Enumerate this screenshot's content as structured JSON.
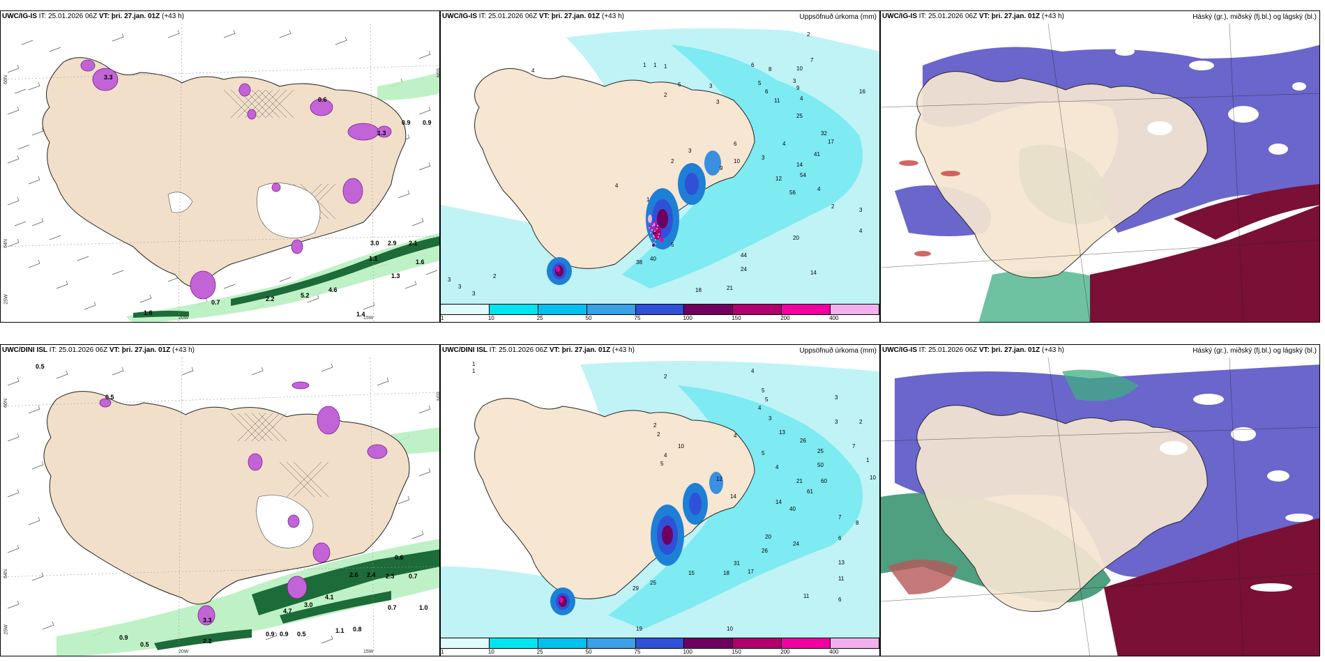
{
  "panels": [
    {
      "id": "ig-wind",
      "title": {
        "model": "UWC/IG-IS",
        "it_label": "IT:",
        "it_value": "25.01.2026 06Z",
        "vt_label": "VT:",
        "vt_value": "þri. 27.jan. 01Z",
        "lead": "(+43 h)"
      },
      "axis_labels": [
        "66N",
        "64N",
        "25W",
        "20W",
        "15W",
        "65N"
      ],
      "values": [
        "0.9",
        "0.9",
        "3.0",
        "2.9",
        "2.1",
        "1.1",
        "1.6",
        "4.6",
        "5.2",
        "2.2",
        "0.7",
        "1.3",
        "1.6",
        "3.3",
        "0.6",
        "1.4",
        "1.3"
      ]
    },
    {
      "id": "ig-precip",
      "title": {
        "model": "UWC/IG-IS",
        "it_label": "IT:",
        "it_value": "25.01.2026 06Z",
        "vt_label": "VT:",
        "vt_value": "þri. 27.jan. 01Z",
        "lead": "(+43 h)"
      },
      "legend_text": "Uppsöfnuð úrkoma (mm)",
      "colorbar": {
        "ticks": [
          "1",
          "10",
          "25",
          "50",
          "75",
          "100",
          "150",
          "200",
          "400"
        ],
        "colors": [
          "#e0fbfb",
          "#00e6f0",
          "#00c0f0",
          "#3aa0e8",
          "#3050d8",
          "#700060",
          "#b0006e",
          "#f000a0",
          "#f2b0ee"
        ]
      },
      "values": [
        "4",
        "2",
        "1",
        "1",
        "1",
        "5",
        "3",
        "2",
        "3",
        "6",
        "8",
        "3",
        "5",
        "16",
        "7",
        "10",
        "9",
        "6",
        "4",
        "11",
        "25",
        "32",
        "17",
        "41",
        "14",
        "9",
        "6",
        "3",
        "10",
        "4",
        "12",
        "54",
        "56",
        "2",
        "3",
        "3",
        "2",
        "1",
        "4",
        "38",
        "40",
        "5",
        "44",
        "24",
        "18",
        "21",
        "20",
        "14",
        "4",
        "4",
        "2",
        "3",
        "3",
        "3"
      ]
    },
    {
      "id": "ig-cloud",
      "title": {
        "model": "UWC/IG-IS",
        "it_label": "IT:",
        "it_value": "25.01.2026 06Z",
        "vt_label": "VT:",
        "vt_value": "þri. 27.jan. 01Z",
        "lead": "(+43 h)"
      },
      "legend_text": "Háský (gr.), miðský (fj.bl.) og lágský (bl.)"
    },
    {
      "id": "dini-wind",
      "title": {
        "model": "UWC/DINI ISL",
        "it_label": "IT:",
        "it_value": "25.01.2026 06Z",
        "vt_label": "VT:",
        "vt_value": "þri. 27.jan. 01Z",
        "lead": "(+43 h)"
      },
      "axis_labels": [
        "66N",
        "64N",
        "25W",
        "20W",
        "15W",
        "65N"
      ],
      "values": [
        "0.5",
        "0.5",
        "3.3",
        "0.6",
        "2.6",
        "2.4",
        "2.3",
        "0.7",
        "0.7",
        "1.0",
        "4.1",
        "4.7",
        "3.0",
        "0.9",
        "0.9",
        "0.5",
        "1.1",
        "0.8",
        "2.2",
        "0.9",
        "0.5"
      ]
    },
    {
      "id": "dini-precip",
      "title": {
        "model": "UWC/DINI ISL",
        "it_label": "IT:",
        "it_value": "25.01.2026 06Z",
        "vt_label": "VT:",
        "vt_value": "þri. 27.jan. 01Z",
        "lead": "(+43 h)"
      },
      "legend_text": "Uppsöfnuð úrkoma (mm)",
      "colorbar": {
        "ticks": [
          "1",
          "10",
          "25",
          "50",
          "75",
          "100",
          "150",
          "200",
          "400"
        ],
        "colors": [
          "#e0fbfb",
          "#00e6f0",
          "#00c0f0",
          "#3aa0e8",
          "#3050d8",
          "#700060",
          "#b0006e",
          "#f000a0",
          "#f2b0ee"
        ]
      },
      "values": [
        "1",
        "1",
        "2",
        "4",
        "5",
        "5",
        "4",
        "3",
        "13",
        "26",
        "25",
        "50",
        "60",
        "61",
        "14",
        "21",
        "40",
        "20",
        "24",
        "26",
        "31",
        "17",
        "18",
        "15",
        "29",
        "25",
        "19",
        "10",
        "13",
        "11",
        "11",
        "6",
        "8",
        "7",
        "6",
        "3",
        "2",
        "3",
        "2",
        "10",
        "12",
        "14",
        "4",
        "5",
        "4",
        "2",
        "5",
        "4",
        "10",
        "7",
        "1"
      ]
    },
    {
      "id": "dini-cloud",
      "title": {
        "model": "UWC/IG-IS",
        "it_label": "IT:",
        "it_value": "25.01.2026 06Z",
        "vt_label": "VT:",
        "vt_value": "þri. 27.jan. 01Z",
        "lead": "(+43 h)"
      },
      "legend_text": "Háský (gr.), miðský (fj.bl.) og lágský (bl.)"
    }
  ]
}
